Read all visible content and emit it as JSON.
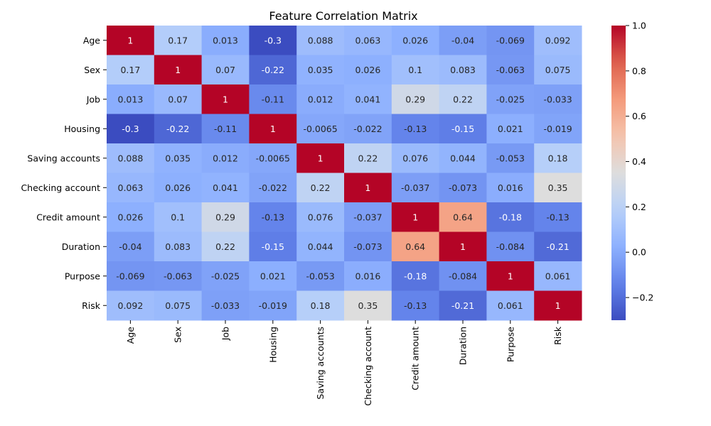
{
  "chart_data": {
    "type": "heatmap",
    "title": "Feature Correlation Matrix",
    "xlabel": "",
    "ylabel": "",
    "colormap": "coolwarm",
    "vmin": -0.3,
    "vmax": 1.0,
    "labels": [
      "Age",
      "Sex",
      "Job",
      "Housing",
      "Saving accounts",
      "Checking account",
      "Credit amount",
      "Duration",
      "Purpose",
      "Risk"
    ],
    "cell_labels": [
      [
        "1",
        "0.17",
        "0.013",
        "-0.3",
        "0.088",
        "0.063",
        "0.026",
        "-0.04",
        "-0.069",
        "0.092"
      ],
      [
        "0.17",
        "1",
        "0.07",
        "-0.22",
        "0.035",
        "0.026",
        "0.1",
        "0.083",
        "-0.063",
        "0.075"
      ],
      [
        "0.013",
        "0.07",
        "1",
        "-0.11",
        "0.012",
        "0.041",
        "0.29",
        "0.22",
        "-0.025",
        "-0.033"
      ],
      [
        "-0.3",
        "-0.22",
        "-0.11",
        "1",
        "-0.0065",
        "-0.022",
        "-0.13",
        "-0.15",
        "0.021",
        "-0.019"
      ],
      [
        "0.088",
        "0.035",
        "0.012",
        "-0.0065",
        "1",
        "0.22",
        "0.076",
        "0.044",
        "-0.053",
        "0.18"
      ],
      [
        "0.063",
        "0.026",
        "0.041",
        "-0.022",
        "0.22",
        "1",
        "-0.037",
        "-0.073",
        "0.016",
        "0.35"
      ],
      [
        "0.026",
        "0.1",
        "0.29",
        "-0.13",
        "0.076",
        "-0.037",
        "1",
        "0.64",
        "-0.18",
        "-0.13"
      ],
      [
        "-0.04",
        "0.083",
        "0.22",
        "-0.15",
        "0.044",
        "-0.073",
        "0.64",
        "1",
        "-0.084",
        "-0.21"
      ],
      [
        "-0.069",
        "-0.063",
        "-0.025",
        "0.021",
        "-0.053",
        "0.016",
        "-0.18",
        "-0.084",
        "1",
        "0.061"
      ],
      [
        "0.092",
        "0.075",
        "-0.033",
        "-0.019",
        "0.18",
        "0.35",
        "-0.13",
        "-0.21",
        "0.061",
        "1"
      ]
    ],
    "colorbar_ticks": [
      "1.0",
      "0.8",
      "0.6",
      "0.4",
      "0.2",
      "0.0",
      "−0.2"
    ],
    "colorbar_tick_values": [
      1.0,
      0.8,
      0.6,
      0.4,
      0.2,
      0.0,
      -0.2
    ]
  }
}
